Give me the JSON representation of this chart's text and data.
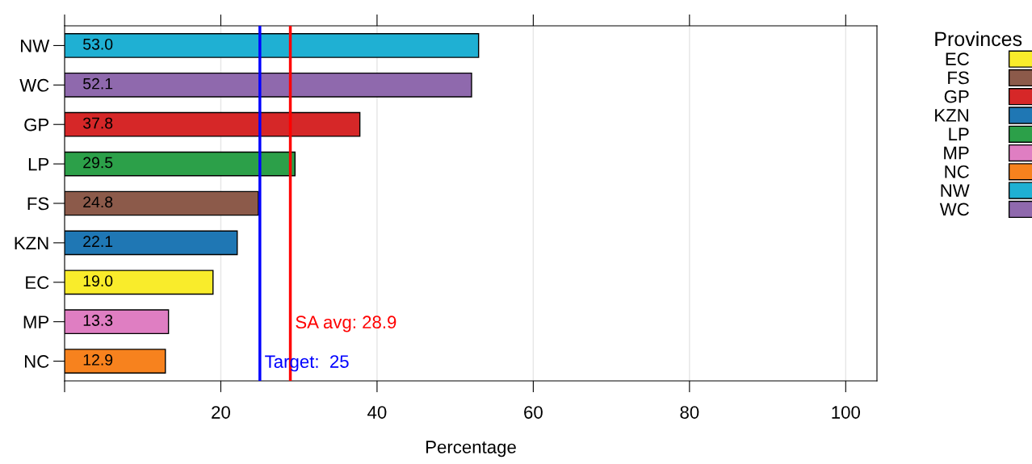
{
  "chart_data": {
    "type": "bar",
    "orientation": "horizontal",
    "xlabel": "Percentage",
    "categories": [
      "NW",
      "WC",
      "GP",
      "LP",
      "FS",
      "KZN",
      "EC",
      "MP",
      "NC"
    ],
    "series": [
      {
        "name": "EC",
        "color": "#f9ec2b",
        "values": [
          null,
          null,
          null,
          null,
          null,
          null,
          19.0,
          null,
          null
        ],
        "value_labels": [
          null,
          null,
          null,
          null,
          null,
          null,
          "19.0",
          null,
          null
        ]
      },
      {
        "name": "FS",
        "color": "#8c5a4a",
        "values": [
          null,
          null,
          null,
          null,
          24.8,
          null,
          null,
          null,
          null
        ],
        "value_labels": [
          null,
          null,
          null,
          null,
          "24.8",
          null,
          null,
          null,
          null
        ]
      },
      {
        "name": "GP",
        "color": "#d62728",
        "values": [
          null,
          null,
          37.8,
          null,
          null,
          null,
          null,
          null,
          null
        ],
        "value_labels": [
          null,
          null,
          "37.8",
          null,
          null,
          null,
          null,
          null,
          null
        ]
      },
      {
        "name": "KZN",
        "color": "#1f77b4",
        "values": [
          null,
          null,
          null,
          null,
          null,
          22.1,
          null,
          null,
          null
        ],
        "value_labels": [
          null,
          null,
          null,
          null,
          null,
          "22.1",
          null,
          null,
          null
        ]
      },
      {
        "name": "LP",
        "color": "#2ca049",
        "values": [
          null,
          null,
          null,
          29.5,
          null,
          null,
          null,
          null,
          null
        ],
        "value_labels": [
          null,
          null,
          null,
          "29.5",
          null,
          null,
          null,
          null,
          null
        ]
      },
      {
        "name": "MP",
        "color": "#df7ec2",
        "values": [
          null,
          null,
          null,
          null,
          null,
          null,
          null,
          13.3,
          null
        ],
        "value_labels": [
          null,
          null,
          null,
          null,
          null,
          null,
          null,
          "13.3",
          null
        ]
      },
      {
        "name": "NC",
        "color": "#f7821e",
        "values": [
          null,
          null,
          null,
          null,
          null,
          null,
          null,
          null,
          12.9
        ],
        "value_labels": [
          null,
          null,
          null,
          null,
          null,
          null,
          null,
          null,
          "12.9"
        ]
      },
      {
        "name": "NW",
        "color": "#1fb0d3",
        "values": [
          53.0,
          null,
          null,
          null,
          null,
          null,
          null,
          null,
          null
        ],
        "value_labels": [
          "53.0",
          null,
          null,
          null,
          null,
          null,
          null,
          null,
          null
        ]
      },
      {
        "name": "WC",
        "color": "#8f69ad",
        "values": [
          null,
          52.1,
          null,
          null,
          null,
          null,
          null,
          null,
          null
        ],
        "value_labels": [
          null,
          "52.1",
          null,
          null,
          null,
          null,
          null,
          null,
          null
        ]
      }
    ],
    "xlim": [
      0,
      104
    ],
    "xticks": [
      {
        "value": 0,
        "label": null
      },
      20,
      40,
      60,
      80,
      100
    ],
    "grid": "x",
    "legend": "right",
    "legend_title": "Provinces",
    "ref_lines": [
      {
        "axis": "x",
        "value": 25,
        "label": "Target:  25",
        "color": "#0000ff"
      },
      {
        "axis": "x",
        "value": 28.9,
        "label": "SA avg: 28.9",
        "color": "#ff0000"
      }
    ]
  }
}
